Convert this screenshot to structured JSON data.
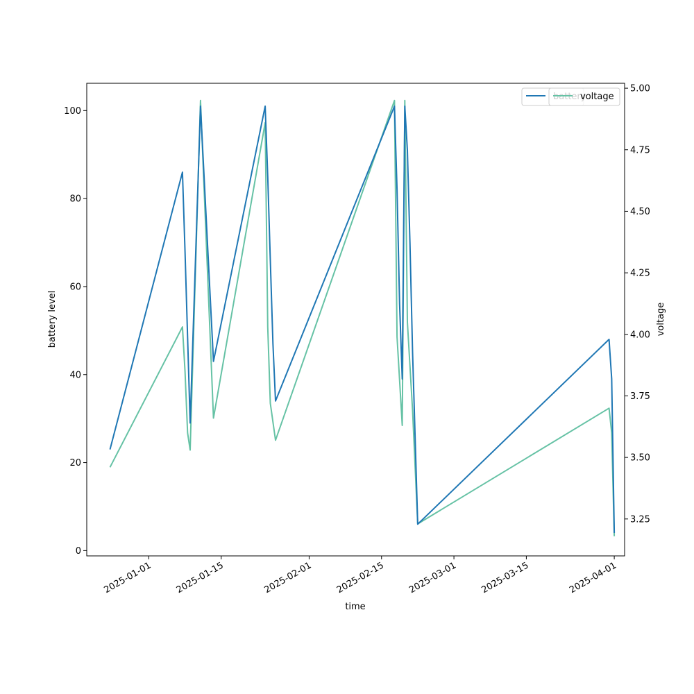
{
  "chart_data": {
    "type": "line",
    "xlabel": "time",
    "ylabel_left": "battery level",
    "ylabel_right": "voltage",
    "x_range": [
      "2024-12-20",
      "2025-04-03"
    ],
    "ylim_left": [
      -1.2,
      106.2
    ],
    "ylim_right": [
      3.1,
      5.02
    ],
    "x_ticks": [
      "2025-01-01",
      "2025-01-15",
      "2025-02-01",
      "2025-02-15",
      "2025-03-01",
      "2025-03-15",
      "2025-04-01"
    ],
    "y_ticks_left": [
      "0",
      "20",
      "40",
      "60",
      "80",
      "100"
    ],
    "y_ticks_right": [
      "3.25",
      "3.50",
      "3.75",
      "4.00",
      "4.25",
      "4.50",
      "4.75",
      "5.00"
    ],
    "legend_position": "top-right",
    "series": [
      {
        "name": "battery",
        "axis": "left",
        "color": "#1f77b4",
        "points": [
          [
            "2024-12-24T12:00",
            23
          ],
          [
            "2025-01-07T12:00",
            86
          ],
          [
            "2025-01-08T00:00",
            68
          ],
          [
            "2025-01-09T00:00",
            29
          ],
          [
            "2025-01-11T00:00",
            101
          ],
          [
            "2025-01-13T12:00",
            43
          ],
          [
            "2025-01-23T12:00",
            101
          ],
          [
            "2025-01-24T00:00",
            85
          ],
          [
            "2025-01-24T12:00",
            66
          ],
          [
            "2025-01-25T00:00",
            47
          ],
          [
            "2025-01-25T12:00",
            34
          ],
          [
            "2025-02-17T12:00",
            101
          ],
          [
            "2025-02-18T00:00",
            82
          ],
          [
            "2025-02-18T12:00",
            56
          ],
          [
            "2025-02-19T00:00",
            39
          ],
          [
            "2025-02-19T12:00",
            101
          ],
          [
            "2025-02-20T00:00",
            91
          ],
          [
            "2025-02-20T12:00",
            70
          ],
          [
            "2025-02-21T00:00",
            45
          ],
          [
            "2025-02-22T00:00",
            6
          ],
          [
            "2025-03-31T00:00",
            48
          ],
          [
            "2025-03-31T12:00",
            39
          ],
          [
            "2025-04-01T00:00",
            4
          ]
        ]
      },
      {
        "name": "voltage",
        "axis": "right",
        "color": "#66c2a5",
        "points": [
          [
            "2024-12-24T12:00",
            3.46
          ],
          [
            "2025-01-07T12:00",
            4.03
          ],
          [
            "2025-01-08T00:00",
            3.85
          ],
          [
            "2025-01-08T12:00",
            3.6
          ],
          [
            "2025-01-09T00:00",
            3.53
          ],
          [
            "2025-01-11T00:00",
            4.95
          ],
          [
            "2025-01-13T12:00",
            3.66
          ],
          [
            "2025-01-23T12:00",
            4.86
          ],
          [
            "2025-01-24T00:00",
            4.03
          ],
          [
            "2025-01-24T12:00",
            3.72
          ],
          [
            "2025-01-25T12:00",
            3.57
          ],
          [
            "2025-02-17T12:00",
            4.95
          ],
          [
            "2025-02-18T00:00",
            3.99
          ],
          [
            "2025-02-19T00:00",
            3.63
          ],
          [
            "2025-02-19T12:00",
            4.95
          ],
          [
            "2025-02-20T00:00",
            4.05
          ],
          [
            "2025-02-21T00:00",
            3.69
          ],
          [
            "2025-02-22T00:00",
            3.23
          ],
          [
            "2025-03-31T00:00",
            3.7
          ],
          [
            "2025-03-31T12:00",
            3.6
          ],
          [
            "2025-04-01T00:00",
            3.18
          ]
        ]
      }
    ]
  }
}
